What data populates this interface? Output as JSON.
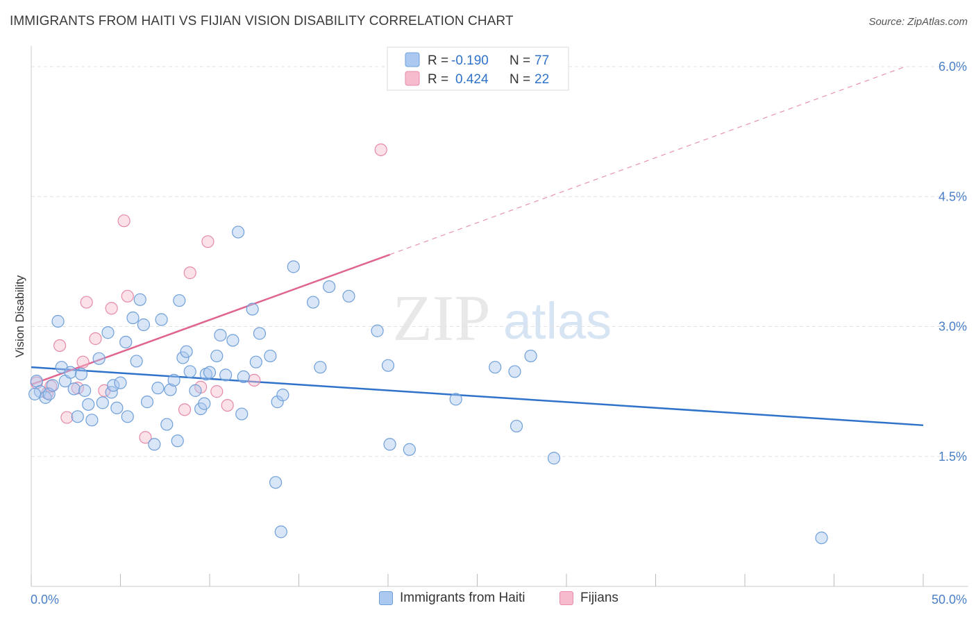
{
  "header": {
    "title": "IMMIGRANTS FROM HAITI VS FIJIAN VISION DISABILITY CORRELATION CHART",
    "source": "Source: ZipAtlas.com"
  },
  "watermark": {
    "zip": "ZIP",
    "atlas": "atlas"
  },
  "colors": {
    "haiti_fill": "#aac8f0",
    "haiti_stroke": "#6f9fd8",
    "haiti_line": "#2f72c9",
    "fiji_fill": "#f6bccd",
    "fiji_stroke": "#e68aa8",
    "fiji_line": "#e06490",
    "axis_label": "#4a7fc8"
  },
  "legend": {
    "rows": [
      {
        "r_label": "R = ",
        "r_value": "-0.190",
        "n_label": "N = ",
        "n_value": "77"
      },
      {
        "r_label": "R = ",
        "r_value": "0.424",
        "n_label": "N = ",
        "n_value": "22"
      }
    ]
  },
  "bottom_legend": {
    "haiti": "Immigrants from Haiti",
    "fiji": "Fijians"
  },
  "chart_data": {
    "type": "scatter",
    "title": "IMMIGRANTS FROM HAITI VS FIJIAN VISION DISABILITY CORRELATION CHART",
    "xlabel": "",
    "ylabel": "Vision Disability",
    "xlim": [
      0,
      50
    ],
    "ylim": [
      0,
      6.2
    ],
    "x_tick_labels": [
      "0.0%",
      "50.0%"
    ],
    "y_ticks": [
      1.5,
      3.0,
      4.5,
      6.0
    ],
    "y_tick_labels": [
      "1.5%",
      "3.0%",
      "4.5%",
      "6.0%"
    ],
    "grid": true,
    "legend_position": "top-center",
    "series": [
      {
        "name": "Immigrants from Haiti",
        "r": -0.19,
        "n": 77,
        "trend": {
          "x": [
            0,
            50
          ],
          "y": [
            2.53,
            1.86
          ]
        },
        "points": [
          [
            0.3,
            2.37
          ],
          [
            0.5,
            2.25
          ],
          [
            0.8,
            2.18
          ],
          [
            1.0,
            2.22
          ],
          [
            1.2,
            2.32
          ],
          [
            1.5,
            3.06
          ],
          [
            1.7,
            2.53
          ],
          [
            1.9,
            2.37
          ],
          [
            2.2,
            2.47
          ],
          [
            2.4,
            2.28
          ],
          [
            2.6,
            1.96
          ],
          [
            2.8,
            2.45
          ],
          [
            3.0,
            2.26
          ],
          [
            3.2,
            2.1
          ],
          [
            3.4,
            1.92
          ],
          [
            3.8,
            2.63
          ],
          [
            4.0,
            2.12
          ],
          [
            4.3,
            2.93
          ],
          [
            4.5,
            2.24
          ],
          [
            4.6,
            2.32
          ],
          [
            4.8,
            2.06
          ],
          [
            5.0,
            2.35
          ],
          [
            5.3,
            2.82
          ],
          [
            5.4,
            1.96
          ],
          [
            5.7,
            3.1
          ],
          [
            5.9,
            2.6
          ],
          [
            6.1,
            3.31
          ],
          [
            6.3,
            3.02
          ],
          [
            6.5,
            2.13
          ],
          [
            6.9,
            1.64
          ],
          [
            7.1,
            2.29
          ],
          [
            7.3,
            3.08
          ],
          [
            7.6,
            1.87
          ],
          [
            7.8,
            2.27
          ],
          [
            8.0,
            2.38
          ],
          [
            8.2,
            1.68
          ],
          [
            8.3,
            3.3
          ],
          [
            8.5,
            2.64
          ],
          [
            8.7,
            2.71
          ],
          [
            8.9,
            2.48
          ],
          [
            9.2,
            2.26
          ],
          [
            9.5,
            2.05
          ],
          [
            9.7,
            2.11
          ],
          [
            9.8,
            2.45
          ],
          [
            10.0,
            2.47
          ],
          [
            10.4,
            2.66
          ],
          [
            10.6,
            2.9
          ],
          [
            10.9,
            2.44
          ],
          [
            11.3,
            2.84
          ],
          [
            11.6,
            4.09
          ],
          [
            11.8,
            1.99
          ],
          [
            11.9,
            2.42
          ],
          [
            12.4,
            3.2
          ],
          [
            12.6,
            2.59
          ],
          [
            12.8,
            2.92
          ],
          [
            13.4,
            2.66
          ],
          [
            13.7,
            1.2
          ],
          [
            13.8,
            2.13
          ],
          [
            14.0,
            0.63
          ],
          [
            14.1,
            2.21
          ],
          [
            14.7,
            3.69
          ],
          [
            15.8,
            3.28
          ],
          [
            16.2,
            2.53
          ],
          [
            16.7,
            3.46
          ],
          [
            17.8,
            3.35
          ],
          [
            19.4,
            2.95
          ],
          [
            20.0,
            2.55
          ],
          [
            20.1,
            1.64
          ],
          [
            21.2,
            1.58
          ],
          [
            23.8,
            2.16
          ],
          [
            26.0,
            2.53
          ],
          [
            27.1,
            2.48
          ],
          [
            27.2,
            1.85
          ],
          [
            28.0,
            2.66
          ],
          [
            29.3,
            1.48
          ],
          [
            44.3,
            0.56
          ],
          [
            0.2,
            2.22
          ]
        ]
      },
      {
        "name": "Fijians",
        "r": 0.424,
        "n": 22,
        "trend": {
          "x": [
            0,
            20.1
          ],
          "y": [
            2.33,
            3.83
          ]
        },
        "trend_extension": {
          "x": [
            20.1,
            49.0
          ],
          "y": [
            3.83,
            6.0
          ]
        },
        "points": [
          [
            0.3,
            2.35
          ],
          [
            0.9,
            2.23
          ],
          [
            1.6,
            2.78
          ],
          [
            2.0,
            1.95
          ],
          [
            2.6,
            2.29
          ],
          [
            2.9,
            2.59
          ],
          [
            3.1,
            3.28
          ],
          [
            3.6,
            2.86
          ],
          [
            4.1,
            2.26
          ],
          [
            4.5,
            3.21
          ],
          [
            5.2,
            4.22
          ],
          [
            5.4,
            3.35
          ],
          [
            6.4,
            1.72
          ],
          [
            8.6,
            2.04
          ],
          [
            8.9,
            3.62
          ],
          [
            9.5,
            2.3
          ],
          [
            9.9,
            3.98
          ],
          [
            10.4,
            2.25
          ],
          [
            11.0,
            2.09
          ],
          [
            12.5,
            2.38
          ],
          [
            19.6,
            5.04
          ],
          [
            1.1,
            2.31
          ]
        ]
      }
    ]
  }
}
